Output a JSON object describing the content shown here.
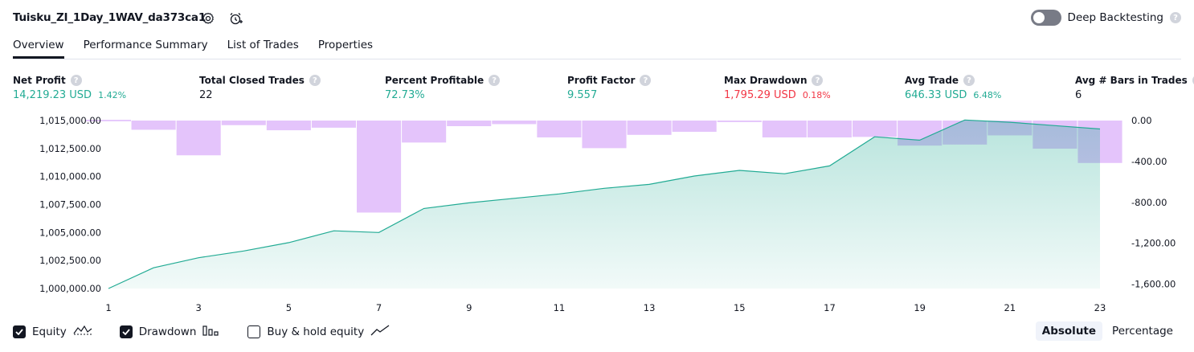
{
  "header": {
    "strategy_title": "Tuisku_ZI_1Day_1WAV_da373ca1",
    "deep_backtesting_label": "Deep Backtesting",
    "help_glyph": "?"
  },
  "tabs": [
    {
      "label": "Overview",
      "active": true
    },
    {
      "label": "Performance Summary",
      "active": false
    },
    {
      "label": "List of Trades",
      "active": false
    },
    {
      "label": "Properties",
      "active": false
    }
  ],
  "metrics": [
    {
      "label": "Net Profit",
      "value": "14,219.23 USD",
      "sub": "1.42%",
      "color": "#22ab94"
    },
    {
      "label": "Total Closed Trades",
      "value": "22",
      "sub": "",
      "color": "#131722"
    },
    {
      "label": "Percent Profitable",
      "value": "72.73%",
      "sub": "",
      "color": "#22ab94"
    },
    {
      "label": "Profit Factor",
      "value": "9.557",
      "sub": "",
      "color": "#22ab94"
    },
    {
      "label": "Max Drawdown",
      "value": "1,795.29 USD",
      "sub": "0.18%",
      "color": "#f23645"
    },
    {
      "label": "Avg Trade",
      "value": "646.33 USD",
      "sub": "6.48%",
      "color": "#22ab94"
    },
    {
      "label": "Avg # Bars in Trades",
      "value": "6",
      "sub": "",
      "color": "#131722"
    }
  ],
  "legend": {
    "equity_label": "Equity",
    "drawdown_label": "Drawdown",
    "buyhold_label": "Buy & hold equity",
    "equity_checked": true,
    "drawdown_checked": true,
    "buyhold_checked": false
  },
  "view_mode": {
    "absolute_label": "Absolute",
    "percentage_label": "Percentage",
    "selected": "Absolute"
  },
  "colors": {
    "equity_line": "#22ab94",
    "equity_fill": "#22ab94",
    "drawdown_bar": "#ce93f8",
    "text": "#131722",
    "profit": "#22ab94",
    "loss": "#f23645"
  },
  "chart_data": {
    "type": "line",
    "x": [
      1,
      2,
      3,
      4,
      5,
      6,
      7,
      8,
      9,
      10,
      11,
      12,
      13,
      14,
      15,
      16,
      17,
      18,
      19,
      20,
      21,
      22,
      23
    ],
    "x_tick_labels": [
      "1",
      "3",
      "5",
      "7",
      "9",
      "11",
      "13",
      "15",
      "17",
      "19",
      "21",
      "23"
    ],
    "series": [
      {
        "name": "Equity",
        "axis": "left",
        "values": [
          1000000,
          1001850,
          1002750,
          1003350,
          1004100,
          1005150,
          1005000,
          1007150,
          1007650,
          1008050,
          1008450,
          1008950,
          1009300,
          1010050,
          1010550,
          1010250,
          1010950,
          1013550,
          1013250,
          1015050,
          1014850,
          1014550,
          1014250
        ]
      },
      {
        "name": "Drawdown",
        "axis": "right",
        "type": "bar",
        "values": [
          0,
          -90,
          -340,
          -45,
          -95,
          -70,
          -900,
          -215,
          -55,
          -35,
          -165,
          -270,
          -140,
          -110,
          -15,
          -165,
          -165,
          -160,
          -245,
          -235,
          -145,
          -275,
          -415
        ]
      }
    ],
    "y_left": {
      "ylim": [
        1000000,
        1015000
      ],
      "tick_labels": [
        "1,015,000.00",
        "1,012,500.00",
        "1,010,000.00",
        "1,007,500.00",
        "1,005,000.00",
        "1,002,500.00",
        "1,000,000.00"
      ]
    },
    "y_right": {
      "ylim": [
        -1800,
        0
      ],
      "tick_labels": [
        "0.00",
        "-400.00",
        "-800.00",
        "-1,200.00",
        "-1,600.00"
      ]
    },
    "grid": false,
    "title": "",
    "xlabel": "",
    "ylabel": ""
  }
}
